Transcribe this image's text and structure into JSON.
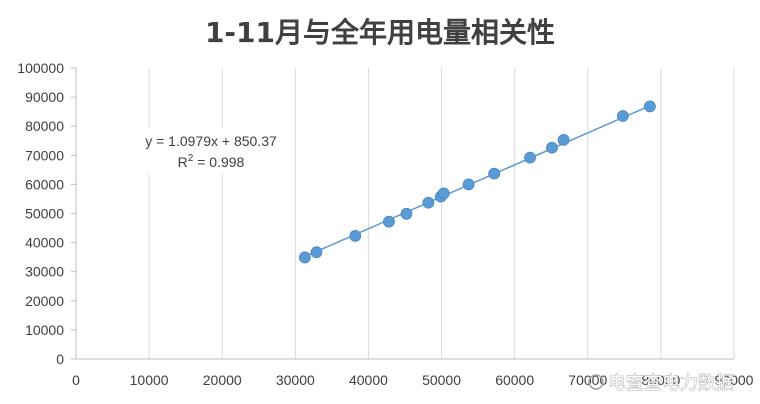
{
  "chart_data": {
    "type": "scatter",
    "title": "1-11月与全年用电量相关性",
    "xlabel": "",
    "ylabel": "",
    "xlim": [
      0,
      90000
    ],
    "ylim": [
      0,
      100000
    ],
    "x_ticks": [
      "0",
      "10000",
      "20000",
      "30000",
      "40000",
      "50000",
      "60000",
      "70000",
      "80000",
      "90000"
    ],
    "y_ticks": [
      "0",
      "10000",
      "20000",
      "30000",
      "40000",
      "50000",
      "60000",
      "70000",
      "80000",
      "90000",
      "100000"
    ],
    "grid": "vertical",
    "series": [
      {
        "color": "#5b9bd5",
        "points": [
          [
            31300,
            34900
          ],
          [
            32900,
            36700
          ],
          [
            38200,
            42300
          ],
          [
            42800,
            47200
          ],
          [
            45200,
            49900
          ],
          [
            48200,
            53700
          ],
          [
            49900,
            55800
          ],
          [
            50300,
            56900
          ],
          [
            53700,
            60000
          ],
          [
            57200,
            63700
          ],
          [
            62100,
            69200
          ],
          [
            65100,
            72600
          ],
          [
            66700,
            75300
          ],
          [
            74800,
            83500
          ],
          [
            78500,
            86800
          ]
        ]
      }
    ],
    "trendline": {
      "type": "linear",
      "slope": 1.0979,
      "intercept": 850.37,
      "x_range": [
        31300,
        78500
      ],
      "color": "#5b9bd5"
    },
    "equation_text": "y = 1.0979x + 850.37",
    "r2_label": "R",
    "r2_sup": "2",
    "r2_value": " = 0.998"
  },
  "watermark": {
    "text": "电查查电力数据"
  }
}
